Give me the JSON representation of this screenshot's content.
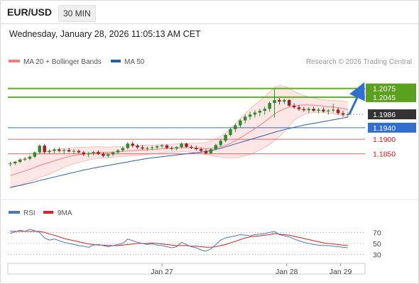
{
  "header": {
    "symbol": "EUR/USD",
    "timeframe": "30 MIN",
    "datetime": "Wednesday, January 28, 2026 11:05:13 AM CET"
  },
  "chart_data": [
    {
      "type": "candlestick",
      "legend": [
        {
          "name": "MA 20 + Bollinger Bands",
          "color": "#f08080"
        },
        {
          "name": "MA 50",
          "color": "#2f5da8"
        }
      ],
      "credit": "Research © 2026 Trading Central",
      "ylim": [
        1.1695,
        1.2145
      ],
      "x_ticks": [
        "Jan 27",
        "Jan 28",
        "Jan 29"
      ],
      "x_tick_index": [
        31,
        56.5,
        67.5
      ],
      "n_slots": 73,
      "levels": [
        {
          "value": 1.2075,
          "label": "1.2075",
          "style": "resistance",
          "line_color": "#66aa22",
          "label_bg": "#5aa11e",
          "label_color": "#ffffff"
        },
        {
          "value": 1.2045,
          "label": "1.2045",
          "style": "resistance",
          "line_color": "#66aa22",
          "label_bg": "#5aa11e",
          "label_color": "#ffffff"
        },
        {
          "value": 1.1986,
          "label": "1.1986",
          "style": "last",
          "line_color": "#555555",
          "label_bg": "#333333",
          "label_color": "#ffffff"
        },
        {
          "value": 1.194,
          "label": "1.1940",
          "style": "pivot",
          "line_color": "#2f6fd0",
          "label_bg": "#2f6fd0",
          "label_color": "#ffffff"
        },
        {
          "value": 1.19,
          "label": "1.1900",
          "style": "support",
          "line_color": "#e06666",
          "label_bg": "",
          "label_color": "#cc2222"
        },
        {
          "value": 1.185,
          "label": "1.1850",
          "style": "support",
          "line_color": "#e06666",
          "label_bg": "",
          "label_color": "#cc2222"
        }
      ],
      "candles": [
        [
          1.1815,
          1.1822,
          1.1807,
          1.1817
        ],
        [
          1.1817,
          1.1825,
          1.1812,
          1.1822
        ],
        [
          1.1822,
          1.1835,
          1.1818,
          1.183
        ],
        [
          1.183,
          1.1838,
          1.1825,
          1.1833
        ],
        [
          1.1833,
          1.1845,
          1.1828,
          1.184
        ],
        [
          1.184,
          1.1858,
          1.1835,
          1.1855
        ],
        [
          1.1855,
          1.1882,
          1.1848,
          1.1878
        ],
        [
          1.1878,
          1.1884,
          1.185,
          1.1856
        ],
        [
          1.1856,
          1.1865,
          1.1848,
          1.186
        ],
        [
          1.186,
          1.187,
          1.1852,
          1.1865
        ],
        [
          1.1865,
          1.1872,
          1.1855,
          1.186
        ],
        [
          1.186,
          1.1868,
          1.185,
          1.1863
        ],
        [
          1.1863,
          1.187,
          1.1855,
          1.1858
        ],
        [
          1.1858,
          1.1866,
          1.185,
          1.186
        ],
        [
          1.186,
          1.1865,
          1.1852,
          1.1855
        ],
        [
          1.1855,
          1.186,
          1.1842,
          1.1848
        ],
        [
          1.1848,
          1.1856,
          1.1838,
          1.1852
        ],
        [
          1.1852,
          1.186,
          1.1845,
          1.1856
        ],
        [
          1.1856,
          1.1862,
          1.1846,
          1.185
        ],
        [
          1.185,
          1.1855,
          1.1838,
          1.1843
        ],
        [
          1.1843,
          1.1852,
          1.1836,
          1.1848
        ],
        [
          1.1848,
          1.1858,
          1.1842,
          1.1855
        ],
        [
          1.1855,
          1.1866,
          1.185,
          1.1862
        ],
        [
          1.1862,
          1.1875,
          1.1857,
          1.187
        ],
        [
          1.187,
          1.189,
          1.1865,
          1.1885
        ],
        [
          1.1885,
          1.1892,
          1.1872,
          1.1878
        ],
        [
          1.1878,
          1.1884,
          1.1866,
          1.1872
        ],
        [
          1.1872,
          1.188,
          1.1864,
          1.1868
        ],
        [
          1.1868,
          1.1875,
          1.186,
          1.187
        ],
        [
          1.187,
          1.1878,
          1.1862,
          1.1872
        ],
        [
          1.1872,
          1.188,
          1.1866,
          1.1876
        ],
        [
          1.1876,
          1.1884,
          1.187,
          1.1879
        ],
        [
          1.1879,
          1.1883,
          1.1866,
          1.187
        ],
        [
          1.187,
          1.1876,
          1.1862,
          1.1868
        ],
        [
          1.1868,
          1.1876,
          1.1862,
          1.1873
        ],
        [
          1.1873,
          1.189,
          1.1868,
          1.1885
        ],
        [
          1.1885,
          1.1888,
          1.187,
          1.1874
        ],
        [
          1.1874,
          1.188,
          1.1866,
          1.187
        ],
        [
          1.187,
          1.1878,
          1.1862,
          1.1866
        ],
        [
          1.1866,
          1.1872,
          1.1855,
          1.186
        ],
        [
          1.186,
          1.1866,
          1.1848,
          1.1852
        ],
        [
          1.1852,
          1.187,
          1.1848,
          1.1866
        ],
        [
          1.1866,
          1.1885,
          1.1862,
          1.188
        ],
        [
          1.188,
          1.19,
          1.1875,
          1.1895
        ],
        [
          1.1895,
          1.192,
          1.189,
          1.1915
        ],
        [
          1.1915,
          1.194,
          1.191,
          1.1935
        ],
        [
          1.1935,
          1.1955,
          1.1925,
          1.1948
        ],
        [
          1.1948,
          1.197,
          1.194,
          1.1965
        ],
        [
          1.1965,
          1.1985,
          1.1955,
          1.1978
        ],
        [
          1.1978,
          1.1995,
          1.1968,
          1.1985
        ],
        [
          1.1985,
          1.2,
          1.1975,
          1.1992
        ],
        [
          1.1992,
          1.2005,
          1.198,
          1.1998
        ],
        [
          1.1998,
          1.2012,
          1.1985,
          1.2005
        ],
        [
          1.2005,
          1.203,
          1.1995,
          1.2025
        ],
        [
          1.2025,
          1.2075,
          1.1975,
          1.2035
        ],
        [
          1.2035,
          1.2042,
          1.202,
          1.203
        ],
        [
          1.203,
          1.204,
          1.2022,
          1.2035
        ],
        [
          1.2035,
          1.2038,
          1.2012,
          1.2016
        ],
        [
          1.2016,
          1.2024,
          1.2005,
          1.201
        ],
        [
          1.201,
          1.2018,
          1.1998,
          1.2004
        ],
        [
          1.2004,
          1.2012,
          1.1995,
          1.2
        ],
        [
          1.2,
          1.201,
          1.199,
          1.2005
        ],
        [
          1.2005,
          1.2012,
          1.1995,
          1.1998
        ],
        [
          1.1998,
          1.2008,
          1.199,
          1.2002
        ],
        [
          1.2002,
          1.201,
          1.1992,
          1.1996
        ],
        [
          1.1996,
          1.2004,
          1.1985,
          1.1999
        ],
        [
          1.1999,
          1.2022,
          1.1992,
          1.2002
        ],
        [
          1.2002,
          1.2008,
          1.1984,
          1.199
        ],
        [
          1.199,
          1.1998,
          1.1978,
          1.1985
        ],
        [
          1.1985,
          1.1992,
          1.1976,
          1.1986
        ]
      ],
      "ma20": [
        1.1775,
        1.178,
        1.1786,
        1.1791,
        1.1797,
        1.1803,
        1.181,
        1.1815,
        1.182,
        1.1826,
        1.1831,
        1.1836,
        1.184,
        1.1844,
        1.1847,
        1.1849,
        1.1851,
        1.1853,
        1.1855,
        1.1855,
        1.1855,
        1.1856,
        1.1857,
        1.1858,
        1.186,
        1.1861,
        1.1862,
        1.1863,
        1.1864,
        1.1865,
        1.1866,
        1.1867,
        1.1868,
        1.1869,
        1.187,
        1.1871,
        1.1871,
        1.1871,
        1.187,
        1.1869,
        1.1868,
        1.1869,
        1.1871,
        1.1874,
        1.1879,
        1.1886,
        1.1895,
        1.1905,
        1.1915,
        1.1926,
        1.1937,
        1.1948,
        1.196,
        1.1973,
        1.1987,
        1.1997,
        1.2005,
        1.2011,
        1.2015,
        1.2017,
        1.2018,
        1.2018,
        1.2017,
        1.2016,
        1.2014,
        1.2012,
        1.2011,
        1.2009,
        1.2006,
        1.2002
      ],
      "band_width": [
        0.0045,
        0.0044,
        0.0043,
        0.0043,
        0.0042,
        0.0042,
        0.0042,
        0.0041,
        0.004,
        0.0038,
        0.0035,
        0.0032,
        0.003,
        0.0028,
        0.0026,
        0.0024,
        0.0022,
        0.0021,
        0.002,
        0.0019,
        0.0018,
        0.0018,
        0.0017,
        0.0017,
        0.0018,
        0.0018,
        0.0018,
        0.0017,
        0.0016,
        0.0015,
        0.0015,
        0.0014,
        0.0014,
        0.0014,
        0.0014,
        0.0014,
        0.0014,
        0.0015,
        0.0016,
        0.0018,
        0.0021,
        0.0025,
        0.003,
        0.0036,
        0.0042,
        0.005,
        0.0058,
        0.0066,
        0.0072,
        0.0078,
        0.0082,
        0.0085,
        0.0088,
        0.009,
        0.0092,
        0.0088,
        0.0078,
        0.0065,
        0.005,
        0.004,
        0.0033,
        0.0028,
        0.0025,
        0.0023,
        0.0022,
        0.0022,
        0.0023,
        0.0024,
        0.0025,
        0.0026
      ],
      "ma50": [
        1.1735,
        1.1738,
        1.1741,
        1.1745,
        1.1749,
        1.1753,
        1.1758,
        1.1762,
        1.1766,
        1.177,
        1.1774,
        1.1778,
        1.1782,
        1.1786,
        1.179,
        1.1794,
        1.1797,
        1.1801,
        1.1804,
        1.1807,
        1.181,
        1.1813,
        1.1816,
        1.1819,
        1.1822,
        1.1825,
        1.1828,
        1.1831,
        1.1834,
        1.1836,
        1.1838,
        1.184,
        1.1842,
        1.1844,
        1.1846,
        1.1848,
        1.185,
        1.1852,
        1.1854,
        1.1856,
        1.1858,
        1.1861,
        1.1865,
        1.1869,
        1.1874,
        1.1879,
        1.1884,
        1.1889,
        1.1894,
        1.1899,
        1.1904,
        1.1909,
        1.1914,
        1.1919,
        1.1924,
        1.1929,
        1.1933,
        1.1937,
        1.1941,
        1.1945,
        1.1949,
        1.1952,
        1.1955,
        1.1958,
        1.1961,
        1.1964,
        1.1967,
        1.197,
        1.1973,
        1.1976
      ],
      "forecast": {
        "from": 1.1986,
        "to": 1.2075
      }
    },
    {
      "type": "line",
      "legend": [
        {
          "name": "RSI",
          "color": "#4a78c8"
        },
        {
          "name": "9MA",
          "color": "#e02020"
        }
      ],
      "ylim": [
        20,
        90
      ],
      "y_ticks": [
        70,
        50,
        30
      ],
      "series": [
        {
          "name": "RSI",
          "values": [
            68,
            71,
            74,
            72,
            76,
            73,
            70,
            60,
            56,
            58,
            55,
            52,
            50,
            48,
            46,
            45,
            43,
            47,
            48,
            46,
            44,
            46,
            48,
            50,
            58,
            55,
            52,
            50,
            48,
            49,
            47,
            46,
            44,
            42,
            44,
            52,
            48,
            44,
            42,
            38,
            36,
            40,
            48,
            56,
            60,
            62,
            64,
            66,
            65,
            64,
            66,
            67,
            68,
            70,
            72,
            66,
            64,
            62,
            58,
            55,
            52,
            50,
            48,
            47,
            46,
            46,
            45,
            44,
            43,
            42
          ]
        },
        {
          "name": "9MA",
          "values": [
            72,
            72,
            72,
            72,
            72,
            72,
            72,
            70,
            67,
            65,
            62,
            59,
            57,
            55,
            53,
            51,
            49,
            48,
            47,
            47,
            46,
            46,
            46,
            47,
            48,
            49,
            50,
            50,
            50,
            51,
            50,
            49,
            48,
            47,
            46,
            46,
            46,
            45,
            45,
            44,
            43,
            43,
            44,
            46,
            48,
            51,
            54,
            57,
            60,
            62,
            63,
            64,
            65,
            66,
            68,
            67,
            66,
            65,
            63,
            61,
            59,
            57,
            55,
            53,
            51,
            50,
            49,
            48,
            47,
            46
          ]
        }
      ]
    }
  ]
}
